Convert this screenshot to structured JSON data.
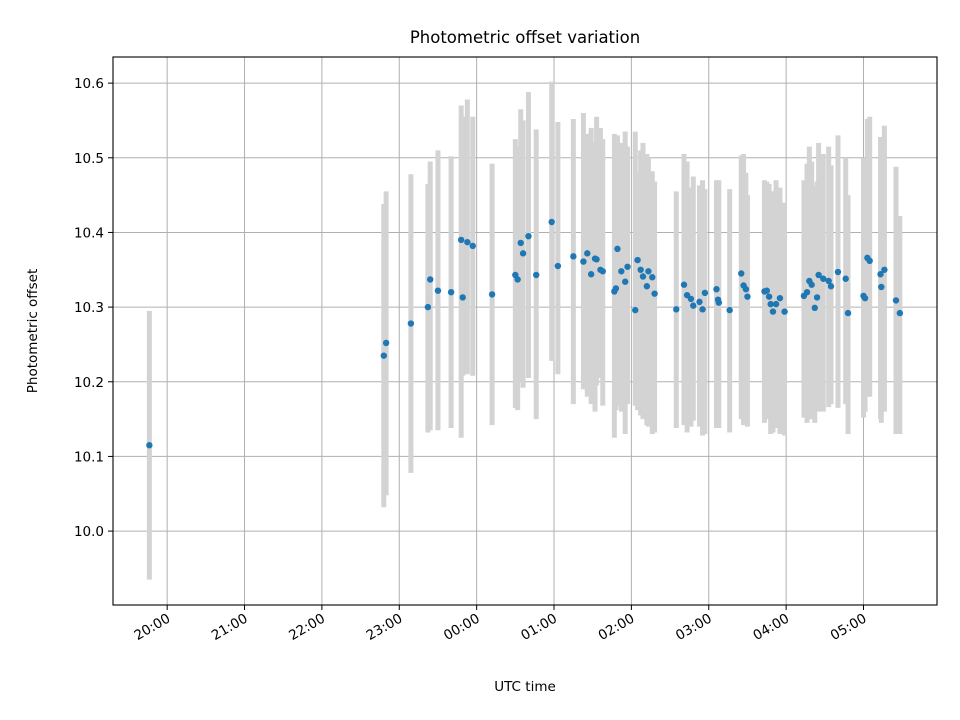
{
  "chart_data": {
    "type": "scatter",
    "title": "Photometric offset variation",
    "xlabel": "UTC time",
    "ylabel": "Photometric offset",
    "x_tick_labels": [
      "20:00",
      "21:00",
      "22:00",
      "23:00",
      "00:00",
      "01:00",
      "02:00",
      "03:00",
      "04:00",
      "05:00"
    ],
    "y_tick_labels": [
      "10.0",
      "10.1",
      "10.2",
      "10.3",
      "10.4",
      "10.5",
      "10.6"
    ],
    "y_ticks": [
      10.0,
      10.1,
      10.2,
      10.3,
      10.4,
      10.5,
      10.6
    ],
    "grid": true,
    "colors": {
      "points": "#1f77b4",
      "errorbars": "#d3d3d3"
    },
    "x_time_hours": [
      19.77,
      22.8,
      22.83,
      23.15,
      23.37,
      23.4,
      23.5,
      23.67,
      23.8,
      23.82,
      23.88,
      23.95,
      24.2,
      24.5,
      24.53,
      24.57,
      24.6,
      24.67,
      24.77,
      24.97,
      25.05,
      25.25,
      25.38,
      25.43,
      25.48,
      25.53,
      25.55,
      25.6,
      25.63,
      25.78,
      25.8,
      25.82,
      25.87,
      25.92,
      25.95,
      26.05,
      26.08,
      26.12,
      26.15,
      26.2,
      26.22,
      26.27,
      26.3,
      26.58,
      26.68,
      26.72,
      26.77,
      26.8,
      26.88,
      26.92,
      26.95,
      27.1,
      27.12,
      27.13,
      27.27,
      27.42,
      27.45,
      27.48,
      27.5,
      27.72,
      27.75,
      27.78,
      27.8,
      27.83,
      27.87,
      27.92,
      27.98,
      28.23,
      28.27,
      28.3,
      28.33,
      28.37,
      28.4,
      28.42,
      28.48,
      28.55,
      28.58,
      28.67,
      28.77,
      28.8,
      29.0,
      29.02,
      29.05,
      29.08,
      29.22,
      29.23,
      29.27,
      29.42,
      29.47
    ],
    "y_values": [
      10.115,
      10.235,
      10.252,
      10.278,
      10.3,
      10.337,
      10.322,
      10.32,
      10.39,
      10.313,
      10.387,
      10.382,
      10.317,
      10.343,
      10.337,
      10.386,
      10.372,
      10.395,
      10.343,
      10.414,
      10.355,
      10.368,
      10.361,
      10.372,
      10.344,
      10.365,
      10.364,
      10.35,
      10.348,
      10.321,
      10.325,
      10.378,
      10.348,
      10.334,
      10.354,
      10.296,
      10.363,
      10.35,
      10.341,
      10.328,
      10.348,
      10.34,
      10.318,
      10.297,
      10.33,
      10.316,
      10.311,
      10.302,
      10.307,
      10.297,
      10.319,
      10.324,
      10.31,
      10.306,
      10.296,
      10.345,
      10.329,
      10.324,
      10.314,
      10.321,
      10.322,
      10.314,
      10.304,
      10.294,
      10.304,
      10.312,
      10.294,
      10.315,
      10.32,
      10.335,
      10.33,
      10.299,
      10.313,
      10.343,
      10.338,
      10.335,
      10.328,
      10.347,
      10.338,
      10.292,
      10.315,
      10.312,
      10.366,
      10.362,
      10.344,
      10.327,
      10.35,
      10.309,
      10.292
    ],
    "y_err_low": [
      9.935,
      10.032,
      10.048,
      10.078,
      10.132,
      10.135,
      10.135,
      10.138,
      10.125,
      10.208,
      10.21,
      10.208,
      10.142,
      10.165,
      10.162,
      10.2,
      10.192,
      10.205,
      10.15,
      10.228,
      10.21,
      10.17,
      10.19,
      10.18,
      10.17,
      10.16,
      10.195,
      10.205,
      10.168,
      10.125,
      10.162,
      10.168,
      10.16,
      10.13,
      10.17,
      10.168,
      10.162,
      10.155,
      10.15,
      10.142,
      10.14,
      10.13,
      10.132,
      10.138,
      10.142,
      10.132,
      10.14,
      10.148,
      10.14,
      10.128,
      10.13,
      10.138,
      10.14,
      10.138,
      10.132,
      10.15,
      10.142,
      10.148,
      10.14,
      10.145,
      10.162,
      10.15,
      10.13,
      10.132,
      10.138,
      10.13,
      10.128,
      10.152,
      10.145,
      10.15,
      10.15,
      10.145,
      10.162,
      10.16,
      10.16,
      10.166,
      10.17,
      10.165,
      10.17,
      10.13,
      10.152,
      10.16,
      10.18,
      10.18,
      10.15,
      10.145,
      10.16,
      10.13,
      10.13
    ],
    "y_err_high": [
      10.295,
      10.438,
      10.455,
      10.478,
      10.465,
      10.495,
      10.51,
      10.502,
      10.57,
      10.555,
      10.578,
      10.555,
      10.492,
      10.525,
      10.515,
      10.565,
      10.55,
      10.588,
      10.538,
      10.602,
      10.548,
      10.552,
      10.56,
      10.532,
      10.54,
      10.52,
      10.555,
      10.54,
      10.525,
      10.532,
      10.505,
      10.53,
      10.52,
      10.535,
      10.515,
      10.535,
      10.48,
      10.51,
      10.52,
      10.505,
      10.5,
      10.482,
      10.468,
      10.455,
      10.505,
      10.495,
      10.46,
      10.475,
      10.463,
      10.47,
      10.458,
      10.47,
      10.465,
      10.47,
      10.458,
      10.503,
      10.505,
      10.48,
      10.45,
      10.47,
      10.468,
      10.465,
      10.455,
      10.455,
      10.47,
      10.46,
      10.44,
      10.47,
      10.492,
      10.515,
      10.495,
      10.462,
      10.468,
      10.52,
      10.505,
      10.515,
      10.49,
      10.53,
      10.5,
      10.45,
      10.5,
      10.49,
      10.552,
      10.555,
      10.528,
      10.502,
      10.543,
      10.488,
      10.422
    ],
    "x_range_hours": [
      19.3,
      29.95
    ],
    "y_range": [
      9.901,
      10.635
    ]
  }
}
